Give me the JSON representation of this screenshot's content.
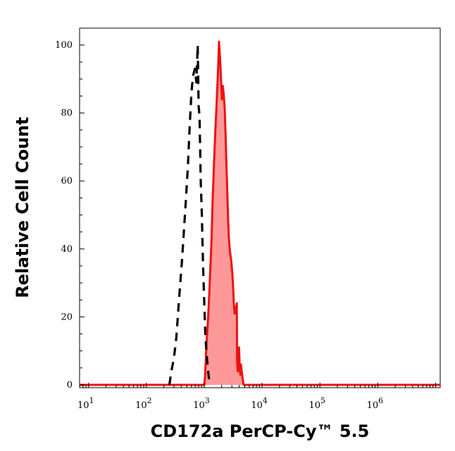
{
  "chart_data": {
    "type": "area",
    "xlabel": "CD172a PerCP-Cy™ 5.5",
    "ylabel": "Relative Cell Count",
    "x_scale": "log",
    "xlim": [
      7,
      12000000
    ],
    "ylim": [
      0,
      106
    ],
    "x_ticks": [
      {
        "value": 10,
        "base": "10",
        "exp": "1"
      },
      {
        "value": 100,
        "base": "10",
        "exp": "2"
      },
      {
        "value": 1000,
        "base": "10",
        "exp": "3"
      },
      {
        "value": 10000,
        "base": "10",
        "exp": "4"
      },
      {
        "value": 100000,
        "base": "10",
        "exp": "5"
      },
      {
        "value": 1000000,
        "base": "10",
        "exp": "6"
      }
    ],
    "y_ticks": [
      0,
      20,
      40,
      60,
      80,
      100
    ],
    "grid": false,
    "legend": "none",
    "series": [
      {
        "style": "dashed",
        "color": "#000000",
        "fill": "none",
        "points": [
          [
            250,
            0
          ],
          [
            270,
            4
          ],
          [
            300,
            8
          ],
          [
            330,
            14
          ],
          [
            370,
            26
          ],
          [
            410,
            36
          ],
          [
            440,
            44
          ],
          [
            480,
            54
          ],
          [
            520,
            64
          ],
          [
            560,
            76
          ],
          [
            600,
            86
          ],
          [
            640,
            91
          ],
          [
            690,
            93
          ],
          [
            730,
            89
          ],
          [
            770,
            100
          ],
          [
            800,
            82
          ],
          [
            830,
            79
          ],
          [
            870,
            60
          ],
          [
            910,
            50
          ],
          [
            950,
            36
          ],
          [
            1000,
            24
          ],
          [
            1050,
            14
          ],
          [
            1100,
            9
          ],
          [
            1150,
            5
          ],
          [
            1200,
            2
          ],
          [
            1300,
            0
          ]
        ]
      },
      {
        "style": "solid",
        "color": "#ee1111",
        "fill": "#ff9999",
        "points": [
          [
            7,
            0
          ],
          [
            500,
            0
          ],
          [
            1000,
            0
          ],
          [
            1030,
            2
          ],
          [
            1060,
            7
          ],
          [
            1100,
            13
          ],
          [
            1150,
            18
          ],
          [
            1200,
            24
          ],
          [
            1260,
            32
          ],
          [
            1330,
            42
          ],
          [
            1400,
            55
          ],
          [
            1480,
            66
          ],
          [
            1560,
            75
          ],
          [
            1650,
            84
          ],
          [
            1740,
            93
          ],
          [
            1800,
            101
          ],
          [
            1880,
            96
          ],
          [
            1950,
            90
          ],
          [
            2020,
            84
          ],
          [
            2100,
            88
          ],
          [
            2180,
            85
          ],
          [
            2260,
            81
          ],
          [
            2350,
            72
          ],
          [
            2450,
            62
          ],
          [
            2550,
            52
          ],
          [
            2650,
            44
          ],
          [
            2750,
            40
          ],
          [
            2850,
            38
          ],
          [
            2950,
            36
          ],
          [
            3050,
            33
          ],
          [
            3150,
            29
          ],
          [
            3250,
            24
          ],
          [
            3350,
            21
          ],
          [
            3450,
            23
          ],
          [
            3550,
            21
          ],
          [
            3650,
            24
          ],
          [
            3700,
            7
          ],
          [
            3800,
            4
          ],
          [
            3900,
            9
          ],
          [
            4000,
            11
          ],
          [
            4100,
            5
          ],
          [
            4200,
            3
          ],
          [
            4300,
            6
          ],
          [
            4450,
            4
          ],
          [
            4600,
            2
          ],
          [
            4800,
            0
          ],
          [
            6000,
            0
          ],
          [
            20000,
            0
          ],
          [
            12000000,
            0
          ]
        ]
      }
    ]
  }
}
